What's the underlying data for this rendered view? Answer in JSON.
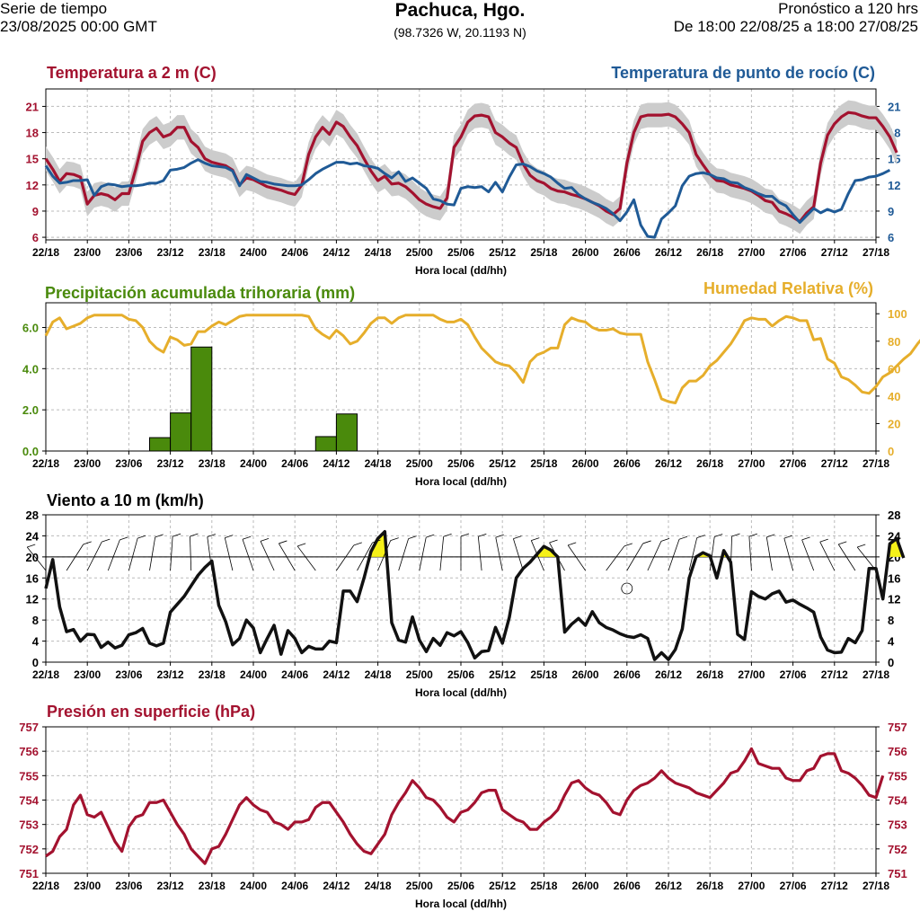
{
  "header": {
    "left_line1": "Serie de tiempo",
    "left_line2": "23/08/2025 00:00 GMT",
    "location": "Pachuca, Hgo.",
    "coords": "(98.7326 W, 20.1193 N)",
    "right_line1": "Pronóstico a 120 hrs",
    "right_line2": "De 18:00 22/08/25 a 18:00 27/08/25"
  },
  "colors": {
    "temp": "#a3122f",
    "dew": "#1f5a96",
    "precip": "#4a8a0c",
    "rh": "#e6ae2b",
    "wind": "#111111",
    "wind_fill": "#f5f019",
    "pressure": "#a3122f",
    "band": "#cccccc",
    "grid": "#bbbbbb"
  },
  "chart_data": [
    {
      "type": "line",
      "title": "Temperatura a 2 m (C)",
      "title_right": "Temperatura de punto de rocío (C)",
      "xlabel": "Hora local (dd/hh)",
      "x_ticks": [
        "22/18",
        "23/00",
        "23/06",
        "23/12",
        "23/18",
        "24/00",
        "24/06",
        "24/12",
        "24/18",
        "25/00",
        "25/06",
        "25/12",
        "25/18",
        "26/00",
        "26/06",
        "26/12",
        "26/18",
        "27/00",
        "27/06",
        "27/12",
        "27/18"
      ],
      "ylim": [
        5.7,
        23
      ],
      "y_ticks": [
        "6",
        "9",
        "12",
        "15",
        "18",
        "21"
      ],
      "y2_ticks": [
        "6",
        "9",
        "12",
        "15",
        "18",
        "21"
      ],
      "series": [
        {
          "name": "Temperatura a 2 m",
          "values": [
            15.0,
            13.8,
            12.4,
            13.3,
            13.2,
            12.9,
            9.8,
            10.8,
            11.0,
            10.8,
            10.3,
            11.0,
            11.0,
            13.8,
            17.0,
            18.0,
            18.5,
            17.5,
            17.8,
            18.6,
            18.6,
            17.0,
            16.3,
            15.0,
            14.6,
            14.4,
            14.2,
            13.7,
            12.0,
            12.8,
            12.6,
            12.2,
            11.8,
            11.6,
            11.4,
            11.1,
            10.9,
            12.0,
            15.5,
            17.5,
            18.6,
            17.8,
            19.2,
            18.7,
            17.5,
            16.5,
            15.0,
            13.6,
            12.5,
            13.0,
            12.1,
            12.2,
            11.8,
            11.1,
            10.3,
            9.8,
            9.5,
            9.3,
            10.5,
            16.3,
            17.5,
            19.2,
            19.9,
            20.0,
            19.8,
            18.0,
            17.5,
            16.8,
            16.3,
            14.4,
            13.1,
            12.5,
            12.2,
            11.6,
            11.3,
            11.2,
            10.9,
            10.7,
            10.4,
            10.0,
            9.6,
            9.0,
            8.6,
            9.3,
            14.5,
            18.0,
            19.8,
            20.0,
            20.0,
            20.0,
            20.1,
            19.8,
            19.0,
            18.0,
            15.5,
            14.3,
            13.2,
            12.5,
            12.4,
            12.0,
            11.8,
            11.6,
            11.3,
            10.8,
            10.2,
            10.0,
            9.0,
            8.7,
            8.3,
            7.8,
            8.8,
            9.5,
            14.5,
            17.7,
            19.0,
            19.8,
            20.3,
            20.2,
            19.9,
            19.7,
            19.7,
            18.7,
            17.5,
            15.7
          ]
        },
        {
          "name": "Temperatura de punto de rocío",
          "values": [
            14.2,
            13.0,
            12.2,
            12.3,
            12.5,
            12.5,
            12.6,
            10.8,
            11.8,
            12.1,
            12.0,
            11.8,
            11.9,
            11.9,
            12.0,
            12.2,
            12.2,
            12.5,
            13.7,
            13.8,
            14.0,
            14.5,
            14.9,
            14.5,
            14.2,
            14.1,
            14.0,
            13.6,
            11.9,
            13.2,
            12.8,
            12.4,
            12.3,
            12.1,
            12.0,
            11.9,
            11.9,
            12.0,
            12.6,
            13.3,
            13.8,
            14.2,
            14.6,
            14.6,
            14.4,
            14.5,
            14.2,
            14.1,
            13.9,
            13.3,
            12.8,
            13.5,
            12.4,
            12.8,
            12.2,
            11.6,
            10.4,
            10.2,
            9.8,
            9.7,
            11.6,
            11.8,
            11.7,
            11.8,
            11.2,
            12.3,
            11.2,
            12.9,
            14.3,
            14.4,
            14.1,
            13.6,
            13.3,
            12.9,
            12.2,
            11.6,
            11.7,
            10.9,
            10.4,
            10.0,
            9.7,
            9.3,
            8.7,
            7.9,
            8.9,
            10.3,
            7.4,
            6.1,
            6.0,
            8.1,
            8.8,
            9.6,
            11.9,
            13.0,
            13.3,
            13.4,
            13.2,
            12.8,
            12.7,
            12.3,
            12.2,
            11.7,
            11.4,
            11.0,
            10.7,
            10.7,
            10.0,
            9.6,
            8.6,
            7.7,
            8.5,
            9.3,
            8.8,
            9.2,
            8.9,
            9.2,
            11.0,
            12.5,
            12.6,
            12.9,
            13.0,
            13.3,
            13.7
          ]
        }
      ]
    },
    {
      "type": "bar",
      "title": "Precipitación acumulada trihoraria (mm)",
      "title_right": "Humedad Relativa (%)",
      "xlabel": "Hora local (dd/hh)",
      "x_ticks": [
        "22/18",
        "23/00",
        "23/06",
        "23/12",
        "23/18",
        "24/00",
        "24/06",
        "24/12",
        "24/18",
        "25/00",
        "25/06",
        "25/12",
        "25/18",
        "26/00",
        "26/06",
        "26/12",
        "26/18",
        "27/00",
        "27/06",
        "27/12",
        "27/18"
      ],
      "ylim": [
        0,
        7.2
      ],
      "y_ticks": [
        "0.0",
        "2.0",
        "4.0",
        "6.0"
      ],
      "y2lim": [
        0,
        108
      ],
      "y2_ticks": [
        "0",
        "20",
        "40",
        "60",
        "80",
        "100"
      ],
      "bars": [
        {
          "start_hour": 15,
          "value": 0.65
        },
        {
          "start_hour": 18,
          "value": 1.85
        },
        {
          "start_hour": 21,
          "value": 5.05
        },
        {
          "start_hour": 39,
          "value": 0.7
        },
        {
          "start_hour": 42,
          "value": 1.8
        }
      ],
      "rh": [
        84,
        94,
        97,
        89,
        91,
        93,
        97,
        99,
        99,
        99,
        99,
        99,
        96,
        95,
        90,
        80,
        75,
        72,
        83,
        81,
        77,
        78,
        87,
        87,
        91,
        94,
        92,
        95,
        98,
        99,
        99,
        99,
        99,
        99,
        99,
        99,
        99,
        99,
        98,
        89,
        85,
        82,
        88,
        84,
        78,
        80,
        86,
        93,
        97,
        97,
        93,
        97,
        99,
        99,
        99,
        99,
        99,
        96,
        94,
        94,
        96,
        92,
        83,
        75,
        70,
        65,
        63,
        62,
        57,
        50,
        65,
        70,
        72,
        75,
        75,
        92,
        97,
        95,
        94,
        90,
        88,
        88,
        89,
        86,
        85,
        85,
        85,
        65,
        52,
        38,
        36,
        35,
        46,
        51,
        51,
        55,
        62,
        66,
        72,
        78,
        86,
        95,
        97,
        96,
        96,
        91,
        95,
        98,
        97,
        95,
        95,
        81,
        82,
        67,
        64,
        54,
        52,
        48,
        43,
        42,
        47,
        54,
        57,
        62,
        67,
        71,
        78,
        84
      ]
    },
    {
      "type": "line",
      "title": "Viento a 10 m (km/h)",
      "xlabel": "Hora local (dd/hh)",
      "x_ticks": [
        "22/18",
        "23/00",
        "23/06",
        "23/12",
        "23/18",
        "24/00",
        "24/06",
        "24/12",
        "24/18",
        "25/00",
        "25/06",
        "25/12",
        "25/18",
        "26/00",
        "26/06",
        "26/12",
        "26/18",
        "27/00",
        "27/06",
        "27/12",
        "27/18"
      ],
      "ylim": [
        0,
        28
      ],
      "y_ticks": [
        "0",
        "4",
        "8",
        "12",
        "16",
        "20",
        "24",
        "28"
      ],
      "y2_ticks": [
        "0",
        "4",
        "8",
        "12",
        "16",
        "20",
        "24",
        "28"
      ],
      "threshold": 20,
      "series": [
        {
          "name": "Viento a 10 m",
          "values": [
            14.0,
            19.5,
            10.5,
            5.8,
            6.2,
            4.0,
            5.3,
            5.2,
            2.8,
            3.8,
            2.7,
            3.2,
            5.2,
            5.6,
            6.4,
            3.6,
            3.1,
            3.6,
            9.5,
            11.0,
            12.5,
            14.5,
            16.5,
            18.0,
            19.2,
            10.8,
            7.7,
            3.3,
            4.5,
            8.0,
            6.5,
            1.8,
            4.5,
            7.0,
            1.5,
            6.0,
            4.5,
            1.8,
            3.0,
            2.5,
            2.5,
            4.0,
            3.7,
            13.5,
            13.5,
            11.5,
            16.0,
            21.0,
            23.5,
            24.8,
            7.5,
            4.2,
            3.8,
            8.6,
            4.2,
            2.0,
            4.5,
            3.2,
            5.6,
            5.0,
            5.8,
            3.7,
            0.8,
            2.0,
            2.2,
            6.6,
            3.6,
            8.5,
            16.0,
            17.8,
            19.0,
            20.5,
            22.0,
            21.3,
            20.0,
            5.7,
            7.2,
            8.3,
            7.0,
            9.6,
            7.5,
            6.6,
            6.1,
            5.4,
            4.9,
            4.7,
            5.2,
            4.5,
            0.5,
            1.8,
            0.5,
            2.4,
            6.3,
            16.0,
            20.0,
            20.8,
            20.2,
            16.0,
            21.2,
            19.0,
            5.3,
            4.3,
            13.4,
            12.5,
            12.0,
            13.0,
            13.5,
            11.4,
            11.8,
            11.0,
            10.3,
            9.5,
            4.8,
            2.3,
            1.8,
            1.9,
            4.5,
            3.7,
            6.0,
            17.8,
            17.8,
            12.0,
            22.5,
            23.5,
            19.8
          ]
        }
      ]
    },
    {
      "type": "line",
      "title": "Presión en superficie (hPa)",
      "xlabel": "Hora local (dd/hh)",
      "x_ticks": [
        "22/18",
        "23/00",
        "23/06",
        "23/12",
        "23/18",
        "24/00",
        "24/06",
        "24/12",
        "24/18",
        "25/00",
        "25/06",
        "25/12",
        "25/18",
        "26/00",
        "26/06",
        "26/12",
        "26/18",
        "27/00",
        "27/06",
        "27/12",
        "27/18"
      ],
      "ylim": [
        751,
        757
      ],
      "y_ticks": [
        "751",
        "752",
        "753",
        "754",
        "755",
        "756",
        "757"
      ],
      "y2_ticks": [
        "751",
        "752",
        "753",
        "754",
        "755",
        "756",
        "757"
      ],
      "series": [
        {
          "name": "Presión en superficie",
          "values": [
            751.7,
            751.9,
            752.5,
            752.8,
            753.8,
            754.2,
            753.4,
            753.3,
            753.5,
            752.9,
            752.3,
            751.9,
            752.9,
            753.3,
            753.4,
            753.9,
            753.9,
            754.0,
            753.5,
            753.0,
            752.6,
            752.0,
            751.7,
            751.4,
            752.0,
            752.1,
            752.6,
            753.2,
            753.8,
            754.1,
            753.8,
            753.6,
            753.5,
            753.1,
            753.0,
            752.8,
            753.1,
            753.1,
            753.2,
            753.7,
            753.9,
            753.9,
            753.5,
            753.1,
            752.6,
            752.2,
            751.9,
            751.8,
            752.2,
            752.6,
            753.4,
            753.9,
            754.3,
            754.8,
            754.5,
            754.1,
            754.0,
            753.7,
            753.3,
            753.1,
            753.5,
            753.6,
            753.9,
            754.3,
            754.4,
            754.4,
            753.6,
            753.4,
            753.2,
            753.1,
            752.8,
            752.8,
            753.1,
            753.3,
            753.6,
            754.2,
            754.7,
            754.8,
            754.5,
            754.3,
            754.2,
            753.9,
            753.5,
            753.4,
            754.0,
            754.4,
            754.6,
            754.7,
            754.9,
            755.2,
            754.9,
            754.7,
            754.6,
            754.5,
            754.3,
            754.2,
            754.1,
            754.4,
            754.7,
            755.1,
            755.2,
            755.6,
            756.1,
            755.5,
            755.4,
            755.3,
            755.3,
            754.9,
            754.8,
            754.8,
            755.2,
            755.3,
            755.8,
            755.9,
            755.9,
            755.2,
            755.1,
            754.9,
            754.6,
            754.2,
            754.1,
            755.0
          ]
        }
      ]
    }
  ]
}
